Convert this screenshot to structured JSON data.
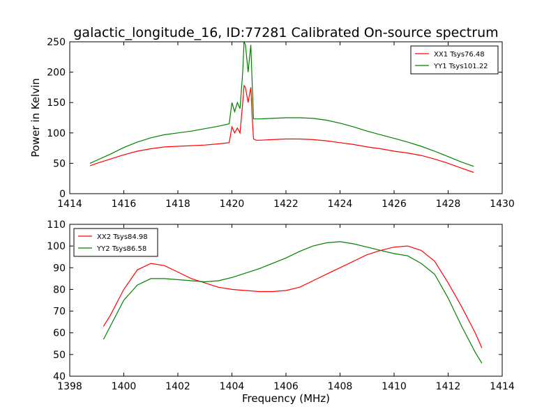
{
  "figure": {
    "title": "galactic_longitude_16, ID:77281 Calibrated On-source spectrum"
  },
  "chart_data": [
    {
      "type": "line",
      "title": "galactic_longitude_16, ID:77281 Calibrated On-source spectrum",
      "xlabel": "",
      "ylabel": "Power in Kelvin",
      "xlim": [
        1414,
        1430
      ],
      "ylim": [
        0,
        250
      ],
      "xticks": [
        1414,
        1416,
        1418,
        1420,
        1422,
        1424,
        1426,
        1428,
        1430
      ],
      "yticks": [
        0,
        50,
        100,
        150,
        200,
        250
      ],
      "grid": false,
      "legend_position": "top-right",
      "series": [
        {
          "name": "XX1 Tsys76.48",
          "color": "#ff0000",
          "x": [
            1414.75,
            1415,
            1415.5,
            1416,
            1416.5,
            1417,
            1417.5,
            1418,
            1418.5,
            1419,
            1419.5,
            1419.9,
            1420.0,
            1420.1,
            1420.2,
            1420.3,
            1420.4,
            1420.45,
            1420.5,
            1420.6,
            1420.7,
            1420.75,
            1420.8,
            1420.9,
            1421,
            1421.5,
            1422,
            1422.5,
            1423,
            1423.5,
            1424,
            1424.5,
            1425,
            1425.5,
            1426,
            1426.5,
            1427,
            1427.5,
            1428,
            1428.5,
            1428.95
          ],
          "y": [
            46,
            50,
            57,
            64,
            70,
            74,
            77,
            78,
            79,
            80,
            82,
            84,
            110,
            100,
            108,
            100,
            150,
            178,
            175,
            150,
            175,
            125,
            90,
            88,
            88,
            89,
            90,
            90,
            89,
            87,
            84,
            81,
            77,
            74,
            70,
            67,
            63,
            57,
            50,
            42,
            35
          ]
        },
        {
          "name": "YY1 Tsys101.22",
          "color": "#008000",
          "x": [
            1414.75,
            1415,
            1415.5,
            1416,
            1416.5,
            1417,
            1417.5,
            1418,
            1418.5,
            1419,
            1419.5,
            1419.9,
            1420.0,
            1420.1,
            1420.2,
            1420.3,
            1420.4,
            1420.45,
            1420.5,
            1420.6,
            1420.7,
            1420.75,
            1420.8,
            1420.9,
            1421,
            1421.5,
            1422,
            1422.5,
            1423,
            1423.5,
            1424,
            1424.5,
            1425,
            1425.5,
            1426,
            1426.5,
            1427,
            1427.5,
            1428,
            1428.5,
            1428.95
          ],
          "y": [
            50,
            55,
            65,
            76,
            85,
            92,
            97,
            100,
            103,
            107,
            111,
            115,
            150,
            135,
            150,
            140,
            200,
            250,
            245,
            200,
            245,
            180,
            123,
            123,
            123,
            124,
            125,
            125,
            124,
            121,
            116,
            110,
            103,
            97,
            91,
            85,
            78,
            70,
            61,
            52,
            45
          ]
        }
      ]
    },
    {
      "type": "line",
      "title": "",
      "xlabel": "Frequency (MHz)",
      "ylabel": "",
      "xlim": [
        1398,
        1414
      ],
      "ylim": [
        40,
        110
      ],
      "xticks": [
        1398,
        1400,
        1402,
        1404,
        1406,
        1408,
        1410,
        1412,
        1414
      ],
      "yticks": [
        40,
        50,
        60,
        70,
        80,
        90,
        100,
        110
      ],
      "grid": false,
      "legend_position": "top-left",
      "series": [
        {
          "name": "XX2 Tsys84.98",
          "color": "#ff0000",
          "x": [
            1399.25,
            1399.5,
            1400,
            1400.5,
            1401,
            1401.5,
            1402,
            1402.5,
            1403,
            1403.5,
            1404,
            1404.5,
            1405,
            1405.5,
            1406,
            1406.5,
            1407,
            1407.5,
            1408,
            1408.5,
            1409,
            1409.5,
            1410,
            1410.5,
            1411,
            1411.5,
            1412,
            1412.5,
            1413,
            1413.25
          ],
          "y": [
            63,
            68,
            80,
            89,
            92,
            91,
            88,
            85,
            83,
            81,
            80,
            79.5,
            79,
            79,
            79.5,
            81,
            84,
            87,
            90,
            93,
            96,
            98,
            99.5,
            100,
            98,
            93,
            83,
            72,
            60,
            53
          ]
        },
        {
          "name": "YY2 Tsys86.58",
          "color": "#008000",
          "x": [
            1399.25,
            1399.5,
            1400,
            1400.5,
            1401,
            1401.5,
            1402,
            1402.5,
            1403,
            1403.5,
            1404,
            1404.5,
            1405,
            1405.5,
            1406,
            1406.5,
            1407,
            1407.5,
            1408,
            1408.5,
            1409,
            1409.5,
            1410,
            1410.5,
            1411,
            1411.5,
            1412,
            1412.5,
            1413,
            1413.25
          ],
          "y": [
            57,
            63,
            75,
            82,
            85,
            85,
            84.5,
            84,
            83.5,
            84,
            85.5,
            87.5,
            89.5,
            92,
            94.5,
            97.5,
            100,
            101.5,
            102,
            101,
            99.5,
            98,
            96.5,
            95.5,
            92,
            87,
            76,
            63,
            51,
            46
          ]
        }
      ]
    }
  ]
}
